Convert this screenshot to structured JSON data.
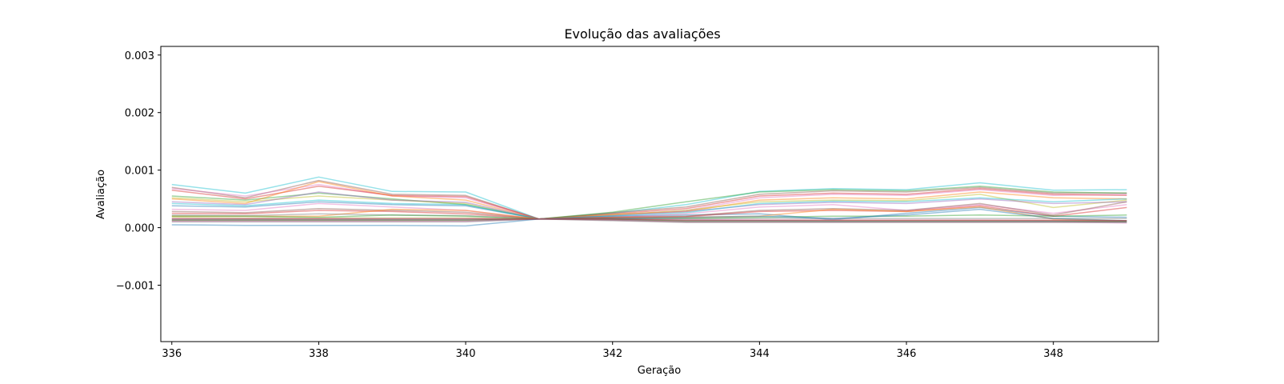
{
  "chart_data": {
    "type": "line",
    "title": "Evolução das avaliações",
    "xlabel": "Geração",
    "ylabel": "Avaliação",
    "xlim": [
      335.85,
      349.43
    ],
    "ylim": [
      -0.00198,
      0.00315
    ],
    "xticks": [
      336,
      338,
      340,
      342,
      344,
      346,
      348
    ],
    "xtick_labels": [
      "336",
      "338",
      "340",
      "342",
      "344",
      "346",
      "348"
    ],
    "yticks": [
      -0.001,
      0.0,
      0.001,
      0.002,
      0.003
    ],
    "ytick_labels": [
      "−0.001",
      "0.000",
      "0.001",
      "0.002",
      "0.003"
    ],
    "grid": false,
    "legend": "none",
    "line_alpha": 0.45,
    "x": [
      336,
      337,
      338,
      339,
      340,
      341,
      342,
      343,
      344,
      345,
      346,
      347,
      348,
      349
    ],
    "series": [
      {
        "color": "#17becf",
        "values": [
          0.00075,
          0.0006,
          0.00088,
          0.00063,
          0.00062,
          0.00015,
          0.00025,
          0.0004,
          0.00063,
          0.00068,
          0.00066,
          0.00078,
          0.00065,
          0.00066
        ]
      },
      {
        "color": "#8c564b",
        "values": [
          0.0007,
          0.00052,
          0.00082,
          0.00058,
          0.00056,
          0.00015,
          0.00026,
          0.00036,
          0.00058,
          0.00064,
          0.00062,
          0.0007,
          0.0006,
          0.0006
        ]
      },
      {
        "color": "#e377c2",
        "values": [
          0.00068,
          0.00055,
          0.00075,
          0.00055,
          0.00052,
          0.00015,
          0.00022,
          0.0003,
          0.00052,
          0.00058,
          0.00056,
          0.00066,
          0.00056,
          0.00058
        ]
      },
      {
        "color": "#d62728",
        "values": [
          0.00065,
          0.0005,
          0.00072,
          0.00056,
          0.00054,
          0.00015,
          0.00024,
          0.00033,
          0.00055,
          0.0006,
          0.00058,
          0.00068,
          0.00058,
          0.00056
        ]
      },
      {
        "color": "#2ca02c",
        "values": [
          0.00055,
          0.00048,
          0.0006,
          0.0005,
          0.0004,
          0.00015,
          0.00027,
          0.00045,
          0.00062,
          0.00066,
          0.00064,
          0.00072,
          0.00062,
          0.0006
        ]
      },
      {
        "color": "#ff7f0e",
        "values": [
          0.0005,
          0.00042,
          0.0008,
          0.00055,
          0.00048,
          0.00015,
          0.00023,
          0.00028,
          0.00048,
          0.00052,
          0.0005,
          0.00062,
          0.00052,
          0.0005
        ]
      },
      {
        "color": "#bcbd22",
        "values": [
          0.00052,
          0.00045,
          0.00055,
          0.00048,
          0.00042,
          0.00015,
          0.00022,
          0.0003,
          0.00045,
          0.00048,
          0.00047,
          0.00058,
          0.00035,
          0.00048
        ]
      },
      {
        "color": "#9467bd",
        "values": [
          0.00045,
          0.0004,
          0.00062,
          0.00048,
          0.00044,
          0.00015,
          0.00021,
          0.00028,
          0.0004,
          0.00044,
          0.00042,
          0.0005,
          0.00042,
          0.00045
        ]
      },
      {
        "color": "#1f77b4",
        "values": [
          0.00038,
          0.00036,
          0.00045,
          0.0004,
          0.00038,
          0.00015,
          0.0002,
          0.00022,
          0.00024,
          0.00014,
          0.00025,
          0.00035,
          0.0002,
          0.00018
        ]
      },
      {
        "color": "#17becf",
        "values": [
          0.00042,
          0.00038,
          0.00048,
          0.00042,
          0.0004,
          0.00015,
          0.0002,
          0.00026,
          0.00042,
          0.00046,
          0.00045,
          0.00052,
          0.00045,
          0.0005
        ]
      },
      {
        "color": "#e377c2",
        "values": [
          0.00032,
          0.0003,
          0.00042,
          0.00036,
          0.0003,
          0.00015,
          0.00018,
          0.00024,
          0.00036,
          0.0004,
          0.0003,
          0.0004,
          0.00025,
          0.0004
        ]
      },
      {
        "color": "#8c564b",
        "values": [
          0.00028,
          0.00026,
          0.00033,
          0.0003,
          0.00027,
          0.00015,
          0.00018,
          0.0002,
          0.0003,
          0.00033,
          0.0003,
          0.00042,
          0.00022,
          0.00045
        ]
      },
      {
        "color": "#d62728",
        "values": [
          0.00025,
          0.00024,
          0.0003,
          0.00028,
          0.00024,
          0.00015,
          0.00018,
          0.00019,
          0.00028,
          0.0003,
          0.00028,
          0.00038,
          0.0002,
          0.00035
        ]
      },
      {
        "color": "#ff7f0e",
        "values": [
          0.0002,
          0.0002,
          0.0002,
          0.00032,
          0.0003,
          0.00015,
          0.00017,
          0.00018,
          0.0002,
          0.00032,
          0.00028,
          0.00036,
          0.00015,
          0.00012
        ]
      },
      {
        "color": "#7f7f7f",
        "values": [
          0.00022,
          0.00021,
          0.00024,
          0.00022,
          0.00021,
          0.00015,
          0.00016,
          0.00016,
          0.00016,
          0.00016,
          0.00016,
          0.00016,
          0.00016,
          0.00016
        ]
      },
      {
        "color": "#2ca02c",
        "values": [
          0.0002,
          0.0002,
          0.00018,
          0.00022,
          0.0002,
          0.00015,
          0.00016,
          0.00016,
          0.00018,
          0.0002,
          0.0002,
          0.00022,
          0.0002,
          0.00022
        ]
      },
      {
        "color": "#bcbd22",
        "values": [
          0.00018,
          0.00017,
          0.00017,
          0.00017,
          0.00017,
          0.00015,
          0.00015,
          0.00012,
          0.00012,
          0.00012,
          0.00012,
          0.00012,
          0.00012,
          0.00012
        ]
      },
      {
        "color": "#9467bd",
        "values": [
          0.00016,
          0.00016,
          0.00016,
          0.00016,
          0.00016,
          0.00015,
          0.00015,
          0.00014,
          0.00013,
          0.00013,
          0.00013,
          0.00013,
          0.00012,
          0.00012
        ]
      },
      {
        "color": "#1f77b4",
        "values": [
          0.00014,
          0.00014,
          0.00014,
          0.00014,
          0.00014,
          0.00015,
          0.00014,
          0.00012,
          0.00012,
          0.00011,
          0.00011,
          0.00011,
          0.00011,
          0.0001
        ]
      },
      {
        "color": "#2ca02c",
        "values": [
          0.00013,
          0.00013,
          0.00013,
          0.00013,
          0.00013,
          0.00015,
          0.00014,
          0.00011,
          0.00011,
          0.00011,
          0.00011,
          0.00011,
          0.00011,
          0.00011
        ]
      },
      {
        "color": "#8c564b",
        "values": [
          0.00012,
          0.00012,
          0.00012,
          0.00012,
          0.00012,
          0.00015,
          0.00013,
          0.0001,
          0.0001,
          0.0001,
          0.0001,
          0.0001,
          0.0001,
          0.0001
        ]
      },
      {
        "color": "#e377c2",
        "values": [
          0.00011,
          0.00011,
          0.00011,
          0.00011,
          0.00011,
          0.00015,
          0.00013,
          0.0001,
          0.0001,
          0.0001,
          0.0001,
          0.0001,
          0.0001,
          8e-05
        ]
      },
      {
        "color": "#7f7f7f",
        "values": [
          0.0001,
          0.0001,
          0.0001,
          0.0001,
          0.0001,
          0.00015,
          0.00012,
          9e-05,
          9e-05,
          9e-05,
          9e-05,
          9e-05,
          9e-05,
          9e-05
        ]
      },
      {
        "color": "#1f77b4",
        "values": [
          5e-05,
          4e-05,
          4e-05,
          4e-05,
          3e-05,
          0.00015,
          0.00016,
          0.00018,
          0.0002,
          0.00016,
          0.00022,
          0.00032,
          0.00016,
          0.00012
        ]
      },
      {
        "color": "#d62728",
        "values": [
          0.00015,
          0.00015,
          0.00015,
          0.00015,
          0.00015,
          0.00015,
          0.00015,
          0.00013,
          0.00013,
          0.00013,
          0.00013,
          0.00013,
          0.00013,
          0.00012
        ]
      }
    ]
  }
}
